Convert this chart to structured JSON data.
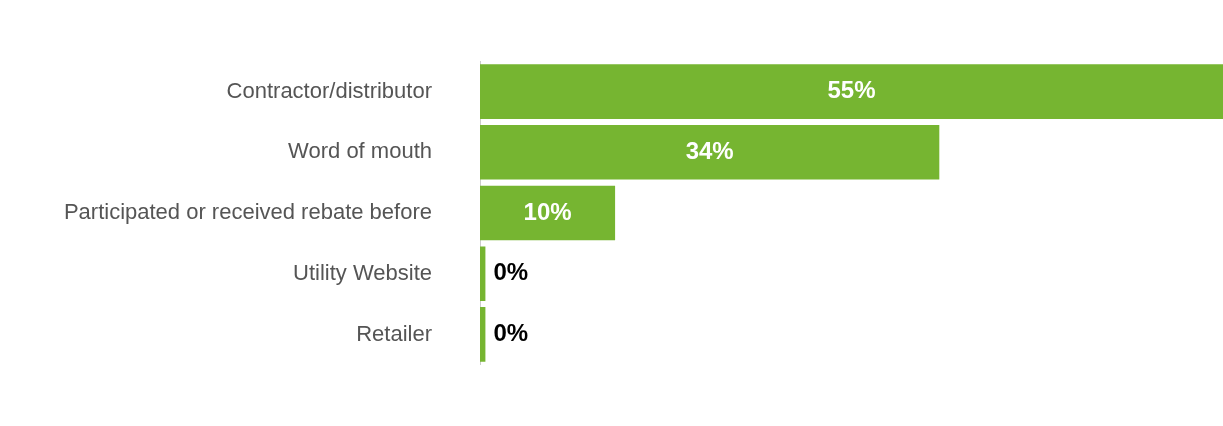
{
  "chart_data": {
    "type": "bar",
    "orientation": "horizontal",
    "categories": [
      "Contractor/distributor",
      "Word of mouth",
      "Participated or received rebate before",
      "Utility Website",
      "Retailer"
    ],
    "values": [
      55,
      34,
      10,
      0.4,
      0.4
    ],
    "value_labels": [
      "55%",
      "34%",
      "10%",
      "0%",
      "0%"
    ],
    "color": "#76b531",
    "xlim": [
      0,
      55
    ],
    "grid": false,
    "legend": false
  }
}
